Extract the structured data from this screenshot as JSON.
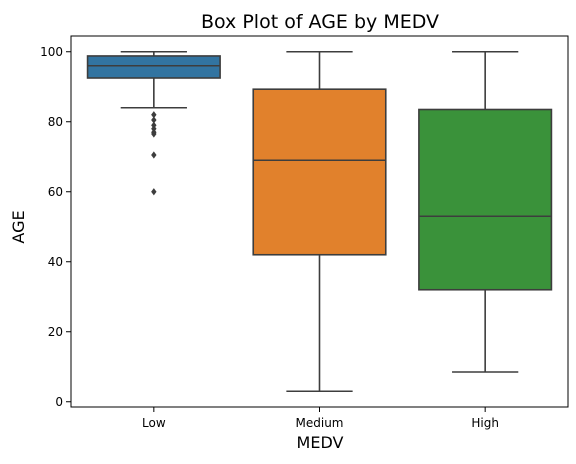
{
  "chart_data": {
    "type": "box",
    "title": "Box Plot of AGE by MEDV",
    "xlabel": "MEDV",
    "ylabel": "AGE",
    "ylim": [
      -1.5,
      104.5
    ],
    "yticks": [
      0,
      20,
      40,
      60,
      80,
      100
    ],
    "grid": false,
    "legend": "none",
    "categories": [
      "Low",
      "Medium",
      "High"
    ],
    "boxes": [
      {
        "category": "Low",
        "color": "#3274a1",
        "whisker_low": 84.0,
        "q1": 92.5,
        "median": 96.0,
        "q3": 98.8,
        "whisker_high": 100.0,
        "outliers": [
          82.0,
          80.5,
          79.0,
          78.0,
          77.0,
          76.5,
          70.5,
          60.0
        ]
      },
      {
        "category": "Medium",
        "color": "#e1812c",
        "whisker_low": 3.0,
        "q1": 42.0,
        "median": 69.0,
        "q3": 89.3,
        "whisker_high": 100.0,
        "outliers": []
      },
      {
        "category": "High",
        "color": "#3a923a",
        "whisker_low": 8.5,
        "q1": 32.0,
        "median": 53.0,
        "q3": 83.5,
        "whisker_high": 100.0,
        "outliers": []
      }
    ]
  }
}
